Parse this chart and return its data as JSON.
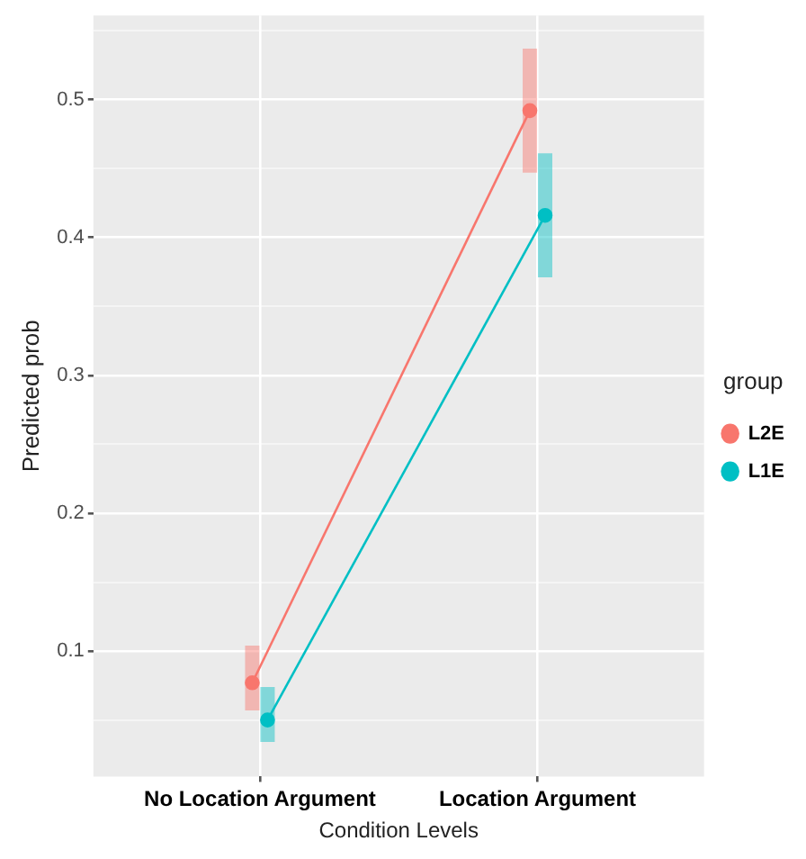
{
  "chart_data": {
    "type": "line",
    "xlabel": "Condition Levels",
    "ylabel": "Predicted prob",
    "legend_title": "group",
    "categories": [
      "No Location Argument",
      "Location Argument"
    ],
    "series": [
      {
        "name": "L2E",
        "color": "#f8766d",
        "values": [
          0.077,
          0.492
        ],
        "errors": [
          [
            0.057,
            0.104
          ],
          [
            0.447,
            0.537
          ]
        ]
      },
      {
        "name": "L1E",
        "color": "#00bfc4",
        "values": [
          0.05,
          0.416
        ],
        "errors": [
          [
            0.034,
            0.074
          ],
          [
            0.371,
            0.461
          ]
        ]
      }
    ],
    "ylim": [
      0.009,
      0.561
    ],
    "yticks": [
      {
        "value": 0.05,
        "label": null
      },
      0.1,
      {
        "value": 0.15,
        "label": null
      },
      0.2,
      {
        "value": 0.25,
        "label": null
      },
      0.3,
      {
        "value": 0.35,
        "label": null
      },
      0.4,
      {
        "value": 0.45,
        "label": null
      },
      0.5,
      {
        "value": 0.55,
        "label": null
      }
    ],
    "grid": true,
    "legend": "right",
    "marker": "circle",
    "line_style": "solid"
  }
}
